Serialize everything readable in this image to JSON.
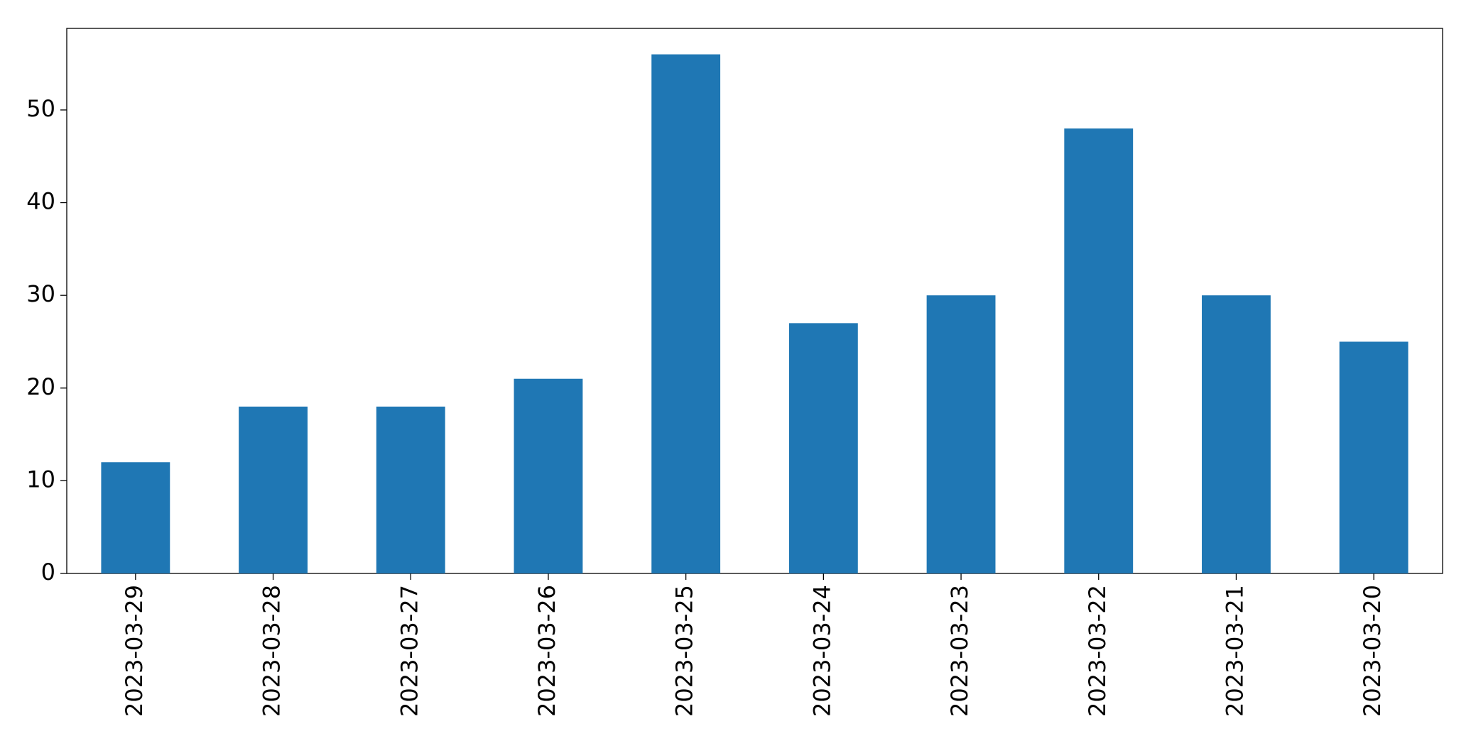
{
  "chart_data": {
    "type": "bar",
    "categories": [
      "2023-03-29",
      "2023-03-28",
      "2023-03-27",
      "2023-03-26",
      "2023-03-25",
      "2023-03-24",
      "2023-03-23",
      "2023-03-22",
      "2023-03-21",
      "2023-03-20"
    ],
    "values": [
      12,
      18,
      18,
      21,
      56,
      27,
      30,
      48,
      30,
      25
    ],
    "color": "#1f77b4",
    "ylim": [
      0,
      58.8
    ],
    "yticks": [
      0,
      10,
      20,
      30,
      40,
      50
    ],
    "grid": false
  }
}
